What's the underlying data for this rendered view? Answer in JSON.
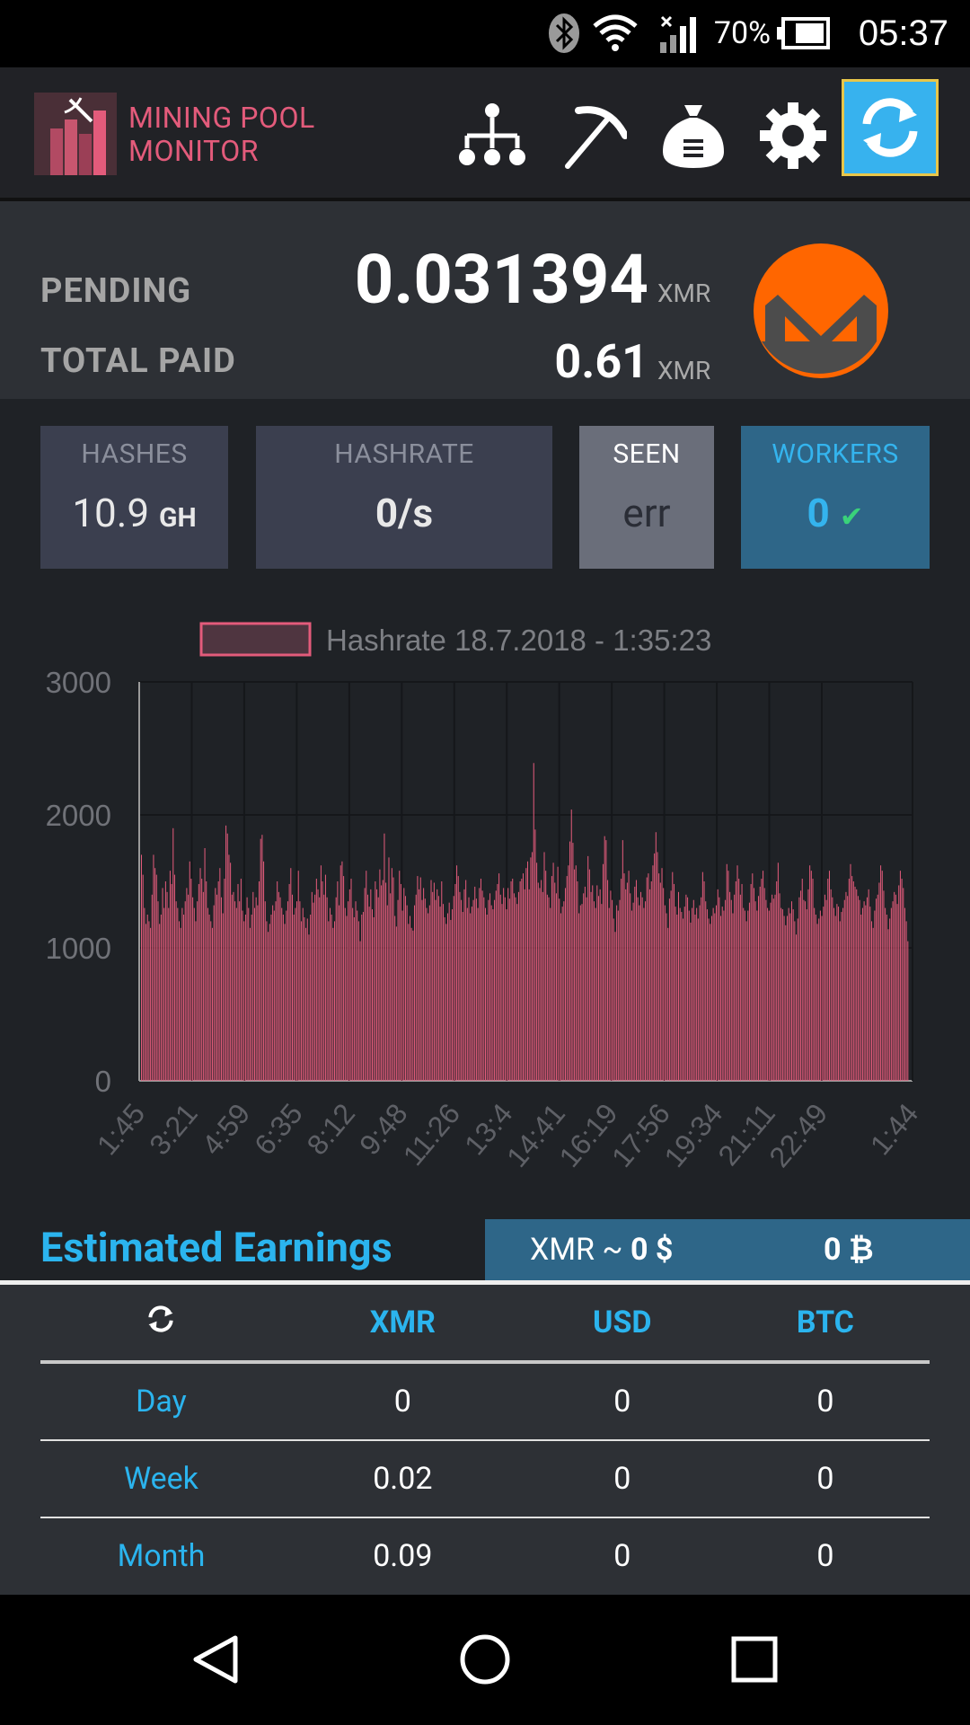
{
  "status_bar": {
    "time": "05:37",
    "battery_pct": "70%",
    "icons": [
      "bluetooth-icon",
      "wifi-icon",
      "signal-icon",
      "battery-icon"
    ]
  },
  "app": {
    "logo_line1": "MINING POOL",
    "logo_line2": "MONITOR",
    "toolbar_icons": [
      "hierarchy-icon",
      "pickaxe-icon",
      "money-bag-icon",
      "gear-icon",
      "refresh-icon"
    ]
  },
  "balance": {
    "pending_label": "PENDING",
    "pending_value": "0.031394",
    "pending_unit": "XMR",
    "total_paid_label": "TOTAL PAID",
    "total_paid_value": "0.61",
    "total_paid_unit": "XMR",
    "coin_icon": "monero-icon"
  },
  "stats": {
    "hashes_label": "HASHES",
    "hashes_value": "10.9",
    "hashes_unit": "GH",
    "hashrate_label": "HASHRATE",
    "hashrate_value": "0/s",
    "seen_label": "SEEN",
    "seen_value": "err",
    "workers_label": "WORKERS",
    "workers_value": "0"
  },
  "chart_data": {
    "type": "bar",
    "legend": "Hashrate 18.7.2018 - 1:35:23",
    "y_ticks": [
      "3000",
      "2000",
      "1000",
      "0"
    ],
    "ylim": [
      0,
      3000
    ],
    "x_tick_labels": [
      "1:45",
      "3:21",
      "4:59",
      "6:35",
      "8:12",
      "9:48",
      "11:26",
      "13:4",
      "14:41",
      "16:19",
      "17:56",
      "19:34",
      "21:11",
      "22:49",
      "1:44"
    ],
    "grid": true,
    "bar_color": "#e35b7b",
    "series": [
      {
        "values": [
          1700,
          1550,
          1300,
          1180,
          1250,
          1200,
          1150,
          1400,
          1700,
          1600,
          1550,
          1350,
          1180,
          1250,
          1450,
          1300,
          1500,
          1420,
          1300,
          1580,
          1480,
          1900,
          1550,
          1350,
          1300,
          1200,
          1150,
          1300,
          1250,
          1350,
          1450,
          1400,
          1650,
          1520,
          1380,
          1300,
          1200,
          1350,
          1480,
          1600,
          1520,
          1420,
          1750,
          1500,
          1300,
          1250,
          1200,
          1150,
          1320,
          1450,
          1400,
          1500,
          1600,
          1380,
          1260,
          1520,
          1920,
          1860,
          1700,
          1640,
          1400,
          1420,
          1350,
          1300,
          1480,
          1350,
          1520,
          1280,
          1200,
          1250,
          1380,
          1300,
          1150,
          1250,
          1420,
          1300,
          1380,
          1320,
          1500,
          1820,
          1850,
          1650,
          1350,
          1200,
          1120,
          1180,
          1250,
          1320,
          1280,
          1350,
          1500,
          1420,
          1380,
          1300,
          1250,
          1180,
          1280,
          1350,
          1480,
          1600,
          1400,
          1250,
          1300,
          1350,
          1580,
          1350,
          1200,
          1300,
          1230,
          1150,
          1220,
          1100,
          1250,
          1420,
          1340,
          1400,
          1520,
          1440,
          1380,
          1620,
          1500,
          1400,
          1550,
          1380,
          1200,
          1300,
          1250,
          1150,
          1200,
          1380,
          1500,
          1320,
          1620,
          1650,
          1540,
          1300,
          1240,
          1350,
          1440,
          1520,
          1300,
          1230,
          1350,
          1280,
          1200,
          1050,
          1250,
          1270,
          1450,
          1580,
          1400,
          1310,
          1440,
          1290,
          1230,
          1500,
          1440,
          1380,
          1590,
          1470,
          1510,
          1860,
          1490,
          1320,
          1680,
          1410,
          1600,
          1530,
          1240,
          1160,
          1360,
          1580,
          1480,
          1280,
          1450,
          1390,
          1320,
          1180,
          1240,
          1150,
          1130,
          1320,
          1400,
          1540,
          1440,
          1530,
          1360,
          1450,
          1370,
          1300,
          1260,
          1320,
          1510,
          1420,
          1490,
          1360,
          1440,
          1390,
          1310,
          1500,
          1330,
          1230,
          1180,
          1260,
          1340,
          1210,
          1290,
          1390,
          1480,
          1620,
          1540,
          1420,
          1360,
          1270,
          1440,
          1510,
          1300,
          1380,
          1260,
          1310,
          1360,
          1460,
          1370,
          1300,
          1450,
          1520,
          1430,
          1380,
          1300,
          1250,
          1360,
          1410,
          1320,
          1290,
          1360,
          1430,
          1480,
          1560,
          1400,
          1330,
          1450,
          1380,
          1290,
          1450,
          1370,
          1500,
          1520,
          1410,
          1380,
          1330,
          1420,
          1500,
          1520,
          1560,
          1440,
          1600,
          1650,
          1440,
          1680,
          1720,
          2390,
          1890,
          1640,
          1490,
          1450,
          1510,
          1420,
          1720,
          1580,
          1400,
          1380,
          1300,
          1540,
          1640,
          1490,
          1410,
          1610,
          1370,
          1260,
          1310,
          1350,
          1450,
          1540,
          1620,
          1800,
          2040,
          1790,
          1590,
          1620,
          1500,
          1260,
          1320,
          1330,
          1410,
          1460,
          1380,
          1690,
          1590,
          1420,
          1470,
          1350,
          1300,
          1470,
          1390,
          1440,
          1330,
          1630,
          1840,
          1810,
          1510,
          1300,
          1430,
          1360,
          1220,
          1120,
          1320,
          1280,
          1360,
          1520,
          1810,
          1560,
          1440,
          1490,
          1580,
          1410,
          1280,
          1340,
          1460,
          1510,
          1380,
          1320,
          1420,
          1380,
          1300,
          1350,
          1530,
          1560,
          1440,
          1500,
          1620,
          1710,
          1870,
          1720,
          1560,
          1490,
          1600,
          1450,
          1320,
          1260,
          1150,
          1370,
          1430,
          1570,
          1480,
          1310,
          1250,
          1420,
          1300,
          1270,
          1220,
          1310,
          1400,
          1380,
          1280,
          1190,
          1300,
          1360,
          1250,
          1300,
          1220,
          1320,
          1380,
          1570,
          1500,
          1350,
          1290,
          1220,
          1180,
          1240,
          1300,
          1260,
          1320,
          1440,
          1380,
          1240,
          1310,
          1280,
          1360,
          1630,
          1580,
          1420,
          1360,
          1260,
          1400,
          1500,
          1620,
          1520,
          1400,
          1480,
          1300,
          1280,
          1200,
          1280,
          1340,
          1480,
          1560,
          1450,
          1350,
          1280,
          1390,
          1460,
          1520,
          1580,
          1450,
          1360,
          1300,
          1280,
          1340,
          1400,
          1370,
          1400,
          1500,
          1640,
          1410,
          1300,
          1290,
          1240,
          1170,
          1240,
          1300,
          1260,
          1350,
          1290,
          1200,
          1100,
          1220,
          1380,
          1430,
          1520,
          1360,
          1350,
          1290,
          1440,
          1620,
          1580,
          1520,
          1300,
          1250,
          1180,
          1220,
          1280,
          1240,
          1310,
          1400,
          1360,
          1520,
          1580,
          1440,
          1380,
          1300,
          1240,
          1330,
          1310,
          1200,
          1270,
          1300,
          1360,
          1420,
          1390,
          1520,
          1630,
          1540,
          1500,
          1460,
          1440,
          1390,
          1360,
          1250,
          1300,
          1350,
          1320,
          1380,
          1440,
          1310,
          1200,
          1150,
          1280,
          1370,
          1400,
          1490,
          1620,
          1580,
          1430,
          1300,
          1250,
          1140,
          1220,
          1300,
          1350,
          1420,
          1400,
          1330,
          1470,
          1580,
          1520,
          1450,
          1300,
          1200,
          1050
        ]
      }
    ]
  },
  "earnings": {
    "title": "Estimated Earnings",
    "rate_xmr": "XMR ~ ",
    "rate_usd": "0 $",
    "rate_btc": "0 ₿",
    "headers": [
      "XMR",
      "USD",
      "BTC"
    ],
    "rows": [
      {
        "label": "Day",
        "xmr": "0",
        "usd": "0",
        "btc": "0"
      },
      {
        "label": "Week",
        "xmr": "0.02",
        "usd": "0",
        "btc": "0"
      },
      {
        "label": "Month",
        "xmr": "0.09",
        "usd": "0",
        "btc": "0"
      }
    ]
  },
  "nav_bar": {
    "icons": [
      "back-icon",
      "home-icon",
      "recents-icon"
    ]
  }
}
